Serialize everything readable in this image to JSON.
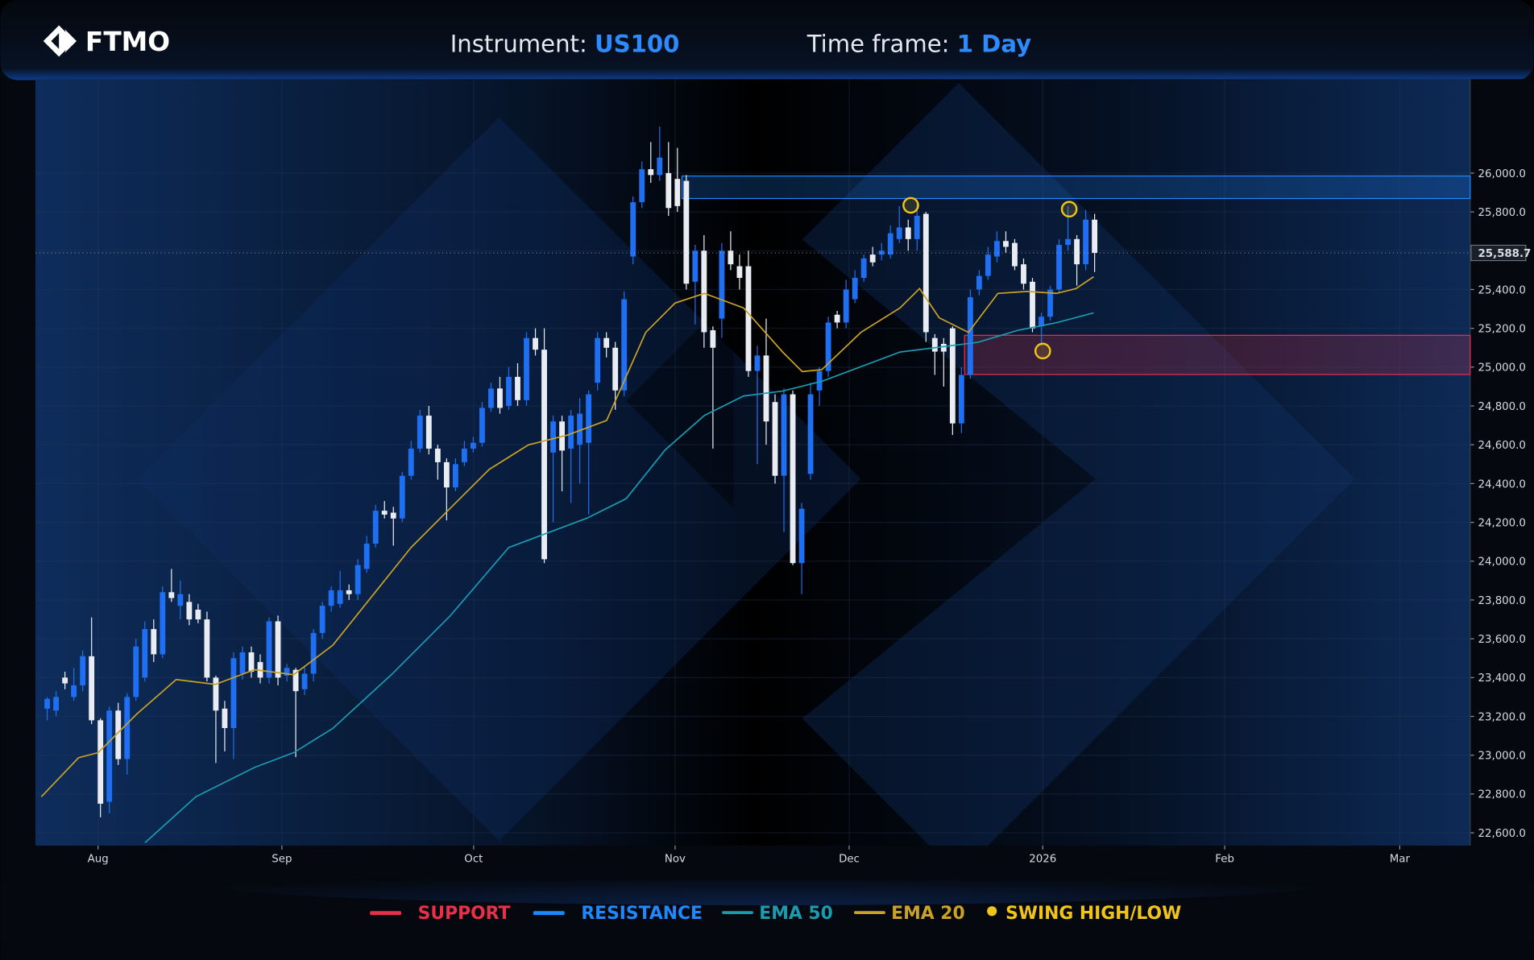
{
  "header": {
    "logo": "FTMO",
    "instrument_label": "Instrument:",
    "instrument": "US100",
    "timeframe_label": "Time frame:",
    "timeframe": "1 Day"
  },
  "chart_data": {
    "type": "candlestick",
    "up_color": "#1f6ff2",
    "down_color": "#e9edf3",
    "grid": true,
    "open": [
      23240,
      23230,
      23400,
      23300,
      23360,
      23510,
      23180,
      22760,
      23230,
      22980,
      23300,
      23400,
      23650,
      23520,
      23840,
      23770,
      23790,
      23750,
      23700,
      23400,
      23240,
      23140,
      23420,
      23530,
      23480,
      23400,
      23690,
      23410,
      23440,
      23340,
      23420,
      23630,
      23770,
      23780,
      23850,
      23830,
      23960,
      24090,
      24260,
      24250,
      24220,
      24440,
      24580,
      24750,
      24580,
      24510,
      24380,
      24510,
      24580,
      24610,
      24790,
      24890,
      24800,
      24950,
      24830,
      25150,
      25090,
      24560,
      24720,
      24580,
      24600,
      24610,
      24920,
      25150,
      25100,
      24880,
      25570,
      25850,
      26020,
      25990,
      26000,
      25970,
      25960,
      25440,
      25600,
      25190,
      25250,
      25600,
      25520,
      25520,
      24980,
      25060,
      24820,
      24440,
      24860,
      23990,
      24450,
      24880,
      24980,
      25270,
      25230,
      25350,
      25460,
      25580,
      25580,
      25580,
      25660,
      25720,
      25660,
      25790,
      25150,
      25120,
      25200,
      24710,
      24960,
      25400,
      25470,
      25570,
      25650,
      25640,
      25530,
      25440,
      25210,
      25260,
      25400,
      25630,
      25660,
      25530,
      25760
    ],
    "high": [
      23300,
      23330,
      23430,
      23450,
      23540,
      23710,
      23190,
      23250,
      23270,
      23320,
      23600,
      23690,
      23700,
      23870,
      23960,
      23900,
      23830,
      23780,
      23740,
      23410,
      23280,
      23530,
      23560,
      23560,
      23520,
      23710,
      23720,
      23470,
      23450,
      23460,
      23650,
      23790,
      23870,
      23950,
      23880,
      24010,
      24130,
      24290,
      24310,
      24280,
      24460,
      24620,
      24780,
      24800,
      24600,
      24530,
      24530,
      24620,
      24640,
      24820,
      24920,
      24950,
      25000,
      25020,
      25180,
      25200,
      25200,
      24750,
      24750,
      24780,
      24840,
      24880,
      25180,
      25180,
      25130,
      25390,
      25880,
      26060,
      26160,
      26240,
      26160,
      26130,
      25990,
      25630,
      25680,
      25210,
      25640,
      25700,
      25580,
      25600,
      25110,
      25250,
      24860,
      24890,
      24880,
      24300,
      24920,
      25000,
      25260,
      25290,
      25450,
      25500,
      25580,
      25620,
      25640,
      25730,
      25830,
      25760,
      25840,
      25800,
      25170,
      25150,
      25210,
      25000,
      25400,
      25500,
      25620,
      25700,
      25700,
      25660,
      25560,
      25460,
      25280,
      25420,
      25660,
      25830,
      25680,
      25810,
      25790
    ],
    "low": [
      23180,
      23200,
      23340,
      23280,
      23330,
      23160,
      22680,
      22700,
      22950,
      22900,
      23280,
      23380,
      23480,
      23500,
      23790,
      23700,
      23670,
      23680,
      23380,
      22960,
      23020,
      22980,
      23390,
      23400,
      23370,
      23370,
      23360,
      23380,
      22990,
      23310,
      23380,
      23600,
      23740,
      23760,
      23800,
      23800,
      23940,
      24070,
      24220,
      24080,
      24200,
      24420,
      24560,
      24550,
      24420,
      24210,
      24360,
      24490,
      24560,
      24590,
      24770,
      24760,
      24780,
      24800,
      24800,
      25060,
      23990,
      24200,
      24360,
      24300,
      24400,
      24240,
      24880,
      25050,
      24780,
      24850,
      25530,
      25820,
      25950,
      25960,
      25780,
      25800,
      25400,
      25220,
      25100,
      24580,
      25150,
      25500,
      25400,
      24950,
      24500,
      24600,
      24400,
      24150,
      23980,
      23830,
      24420,
      24800,
      24950,
      25200,
      25200,
      25330,
      25440,
      25520,
      25550,
      25560,
      25640,
      25600,
      25600,
      25130,
      24960,
      24900,
      24650,
      24660,
      24940,
      25370,
      25450,
      25540,
      25590,
      25500,
      25400,
      25180,
      25110,
      25240,
      25380,
      25600,
      25420,
      25500,
      25490
    ],
    "close": [
      23290,
      23300,
      23370,
      23360,
      23510,
      23180,
      22750,
      23230,
      22980,
      23300,
      23560,
      23650,
      23520,
      23840,
      23810,
      23830,
      23700,
      23700,
      23400,
      23230,
      23140,
      23500,
      23530,
      23430,
      23400,
      23690,
      23400,
      23450,
      23330,
      23420,
      23630,
      23770,
      23850,
      23850,
      23830,
      23980,
      24090,
      24260,
      24240,
      24220,
      24440,
      24580,
      24750,
      24580,
      24510,
      24380,
      24500,
      24580,
      24610,
      24790,
      24890,
      24790,
      24950,
      24830,
      25150,
      25090,
      24010,
      24720,
      24570,
      24750,
      24760,
      24860,
      25150,
      25100,
      24880,
      25350,
      25850,
      26020,
      25990,
      26080,
      25820,
      25830,
      25430,
      25600,
      25180,
      25100,
      25600,
      25530,
      25460,
      24980,
      25060,
      24720,
      24440,
      24860,
      23990,
      24270,
      24860,
      24980,
      25230,
      25230,
      25400,
      25460,
      25560,
      25540,
      25600,
      25690,
      25720,
      25660,
      25780,
      25180,
      25080,
      25080,
      24710,
      24960,
      25360,
      25470,
      25580,
      25650,
      25620,
      25520,
      25430,
      25200,
      25260,
      25400,
      25630,
      25660,
      25530,
      25760,
      25588.7
    ],
    "xlim": [
      -1.32,
      160.31
    ],
    "xticks": [
      {
        "value": 5.73,
        "label": "Aug"
      },
      {
        "value": 26.44,
        "label": "Sep"
      },
      {
        "value": 48.04,
        "label": "Oct"
      },
      {
        "value": 70.74,
        "label": "Nov"
      },
      {
        "value": 90.35,
        "label": "Dec"
      },
      {
        "value": 112.16,
        "label": "2026"
      },
      {
        "value": 132.66,
        "label": "Feb"
      },
      {
        "value": 152.38,
        "label": "Mar"
      }
    ],
    "ylim": [
      22534,
      26484
    ],
    "yticks": [
      {
        "value": 22600,
        "label": "22,600.0"
      },
      {
        "value": 22800,
        "label": "22,800.0"
      },
      {
        "value": 23000,
        "label": "23,000.0"
      },
      {
        "value": 23200,
        "label": "23,200.0"
      },
      {
        "value": 23400,
        "label": "23,400.0"
      },
      {
        "value": 23600,
        "label": "23,600.0"
      },
      {
        "value": 23800,
        "label": "23,800.0"
      },
      {
        "value": 24000,
        "label": "24,000.0"
      },
      {
        "value": 24200,
        "label": "24,200.0"
      },
      {
        "value": 24400,
        "label": "24,400.0"
      },
      {
        "value": 24600,
        "label": "24,600.0"
      },
      {
        "value": 24800,
        "label": "24,800.0"
      },
      {
        "value": 25000,
        "label": "25,000.0"
      },
      {
        "value": 25200,
        "label": "25,200.0"
      },
      {
        "value": 25400,
        "label": "25,400.0"
      },
      {
        "value": 25600,
        "label": "25,600.0"
      },
      {
        "value": 25800,
        "label": "25,800.0"
      },
      {
        "value": 26000,
        "label": "26,000.0"
      }
    ],
    "last_price": {
      "value": 25588.7,
      "label": "25,588.7"
    },
    "zones": [
      {
        "name": "SUPPORT",
        "color": "#e8304a",
        "range": [
          24962,
          25164
        ],
        "x_start": 103.35
      },
      {
        "name": "RESISTANCE",
        "color": "#1e88ff",
        "range": [
          25869,
          25985
        ],
        "x_start": 71.51
      }
    ],
    "lines": [
      {
        "name": "EMA 50",
        "color": "#1a9bb0",
        "x": [
          11.02,
          16.75,
          23.36,
          27.77,
          32.17,
          38.78,
          45.39,
          52.0,
          56.41,
          60.82,
          65.23,
          69.63,
          74.04,
          78.45,
          82.86,
          87.27,
          91.67,
          96.08,
          100.49,
          104.89,
          109.3,
          113.71,
          117.89
        ],
        "values": [
          22549,
          22786,
          22937,
          23013,
          23138,
          23415,
          23718,
          24070,
          24146,
          24222,
          24322,
          24574,
          24751,
          24851,
          24877,
          24927,
          25002,
          25078,
          25103,
          25128,
          25189,
          25229,
          25280
        ]
      },
      {
        "name": "EMA 20",
        "color": "#c9a227",
        "x": [
          -0.66,
          3.53,
          5.73,
          10.14,
          14.54,
          18.95,
          23.36,
          27.77,
          32.17,
          36.58,
          40.99,
          45.39,
          49.8,
          54.21,
          58.62,
          63.02,
          67.43,
          70.74,
          74.04,
          78.45,
          82.86,
          85.06,
          87.27,
          91.67,
          96.08,
          98.28,
          100.49,
          103.79,
          107.1,
          110.4,
          113.71,
          115.91,
          117.89
        ],
        "values": [
          22786,
          22987,
          23013,
          23214,
          23390,
          23365,
          23441,
          23415,
          23567,
          23819,
          24070,
          24272,
          24473,
          24599,
          24650,
          24725,
          25179,
          25330,
          25380,
          25305,
          25078,
          24977,
          24987,
          25179,
          25305,
          25405,
          25254,
          25179,
          25380,
          25390,
          25380,
          25405,
          25466
        ]
      }
    ],
    "swings": {
      "name": "SWING HIGH/LOW",
      "color": "#f0c419",
      "x": [
        97.29,
        115.14,
        112.16
      ],
      "values": [
        25834,
        25814,
        25083
      ]
    }
  }
}
